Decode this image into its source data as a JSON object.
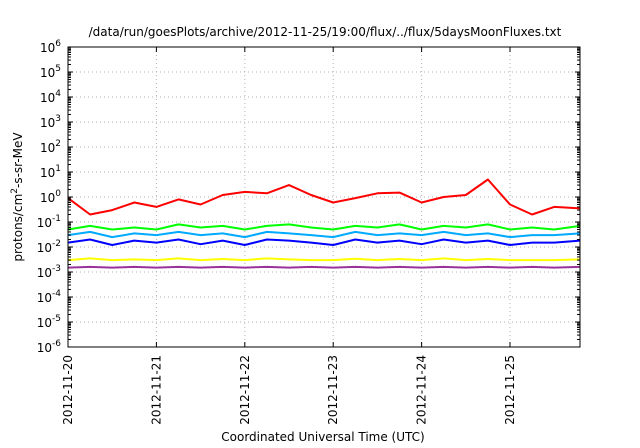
{
  "chart_data": {
    "type": "line",
    "title": "/data/run/goesPlots/archive/2012-11-25/19:00/flux/../flux/5daysMoonFluxes.txt",
    "xlabel": "Coordinated Universal Time (UTC)",
    "ylabel": {
      "base": "protons/cm",
      "sup": "2",
      "rest": "-s-sr-MeV"
    },
    "y_scale": "log",
    "ylim": [
      1e-06,
      1000000.0
    ],
    "y_ticks": [
      {
        "value": 1000000.0,
        "base": "10",
        "exp": "6"
      },
      {
        "value": 100000.0,
        "base": "10",
        "exp": "5"
      },
      {
        "value": 10000.0,
        "base": "10",
        "exp": "4"
      },
      {
        "value": 1000.0,
        "base": "10",
        "exp": "3"
      },
      {
        "value": 100.0,
        "base": "10",
        "exp": "2"
      },
      {
        "value": 10.0,
        "base": "10",
        "exp": "1"
      },
      {
        "value": 1.0,
        "base": "10",
        "exp": "0"
      },
      {
        "value": 0.1,
        "base": "10",
        "exp": "-1"
      },
      {
        "value": 0.01,
        "base": "10",
        "exp": "-2"
      },
      {
        "value": 0.001,
        "base": "10",
        "exp": "-3"
      },
      {
        "value": 0.0001,
        "base": "10",
        "exp": "-4"
      },
      {
        "value": 1e-05,
        "base": "10",
        "exp": "-5"
      },
      {
        "value": 1e-06,
        "base": "10",
        "exp": "-6"
      }
    ],
    "xlim": [
      "2012-11-20T00:00",
      "2012-11-25T19:00"
    ],
    "x_ticks": [
      "2012-11-20",
      "2012-11-21",
      "2012-11-22",
      "2012-11-23",
      "2012-11-24",
      "2012-11-25"
    ],
    "grid": true,
    "x": [
      "2012-11-20T00:00",
      "2012-11-20T06:00",
      "2012-11-20T12:00",
      "2012-11-20T18:00",
      "2012-11-21T00:00",
      "2012-11-21T06:00",
      "2012-11-21T12:00",
      "2012-11-21T18:00",
      "2012-11-22T00:00",
      "2012-11-22T06:00",
      "2012-11-22T12:00",
      "2012-11-22T18:00",
      "2012-11-23T00:00",
      "2012-11-23T06:00",
      "2012-11-23T12:00",
      "2012-11-23T18:00",
      "2012-11-24T00:00",
      "2012-11-24T06:00",
      "2012-11-24T12:00",
      "2012-11-24T18:00",
      "2012-11-25T00:00",
      "2012-11-25T06:00",
      "2012-11-25T12:00",
      "2012-11-25T19:00"
    ],
    "series": [
      {
        "color": "#ff0000",
        "values": [
          0.9,
          0.2,
          0.3,
          0.6,
          0.4,
          0.8,
          0.5,
          1.2,
          1.6,
          1.4,
          3.0,
          1.2,
          0.6,
          0.9,
          1.4,
          1.5,
          0.6,
          1.0,
          1.2,
          5.0,
          0.5,
          0.2,
          0.4,
          0.35
        ]
      },
      {
        "color": "#00ff00",
        "values": [
          0.05,
          0.07,
          0.05,
          0.06,
          0.05,
          0.08,
          0.06,
          0.07,
          0.05,
          0.07,
          0.08,
          0.06,
          0.05,
          0.07,
          0.06,
          0.08,
          0.05,
          0.07,
          0.06,
          0.08,
          0.05,
          0.06,
          0.05,
          0.07
        ]
      },
      {
        "color": "#00aaff",
        "values": [
          0.03,
          0.04,
          0.025,
          0.035,
          0.03,
          0.04,
          0.03,
          0.035,
          0.025,
          0.04,
          0.035,
          0.03,
          0.025,
          0.04,
          0.03,
          0.035,
          0.03,
          0.04,
          0.03,
          0.035,
          0.025,
          0.03,
          0.03,
          0.035
        ]
      },
      {
        "color": "#0000ff",
        "values": [
          0.015,
          0.02,
          0.012,
          0.018,
          0.015,
          0.02,
          0.013,
          0.018,
          0.012,
          0.02,
          0.018,
          0.015,
          0.012,
          0.02,
          0.015,
          0.018,
          0.013,
          0.02,
          0.015,
          0.018,
          0.012,
          0.015,
          0.015,
          0.018
        ]
      },
      {
        "color": "#ffff00",
        "values": [
          0.003,
          0.0035,
          0.003,
          0.0032,
          0.003,
          0.0035,
          0.003,
          0.0033,
          0.003,
          0.0035,
          0.0032,
          0.003,
          0.003,
          0.0034,
          0.003,
          0.0033,
          0.003,
          0.0035,
          0.003,
          0.0033,
          0.003,
          0.003,
          0.003,
          0.0032
        ]
      },
      {
        "color": "#993399",
        "values": [
          0.0015,
          0.0016,
          0.0015,
          0.0016,
          0.0015,
          0.0016,
          0.0015,
          0.0016,
          0.0015,
          0.0016,
          0.0015,
          0.0016,
          0.0015,
          0.0016,
          0.0015,
          0.0016,
          0.0015,
          0.0016,
          0.0015,
          0.0016,
          0.0015,
          0.0016,
          0.0015,
          0.0016
        ]
      }
    ]
  }
}
